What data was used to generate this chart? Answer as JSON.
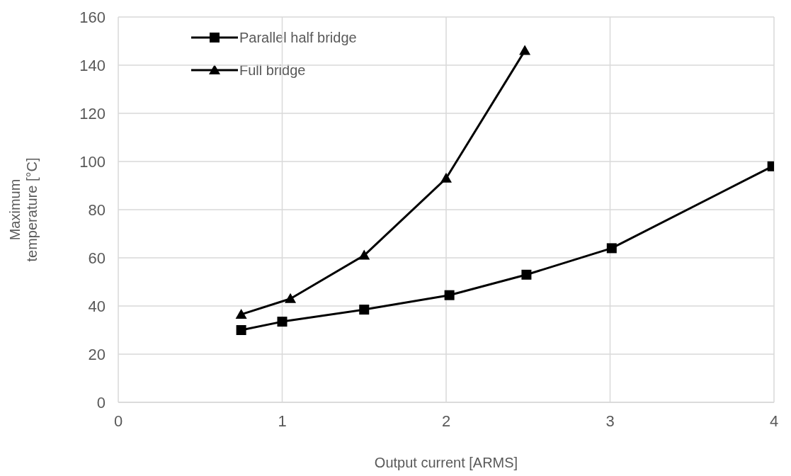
{
  "chart_data": {
    "type": "line",
    "xlabel": "Output current [ARMS]",
    "ylabel": "Maximum temperature [°C]",
    "xlim": [
      0,
      4
    ],
    "xticks": [
      0,
      1,
      2,
      3,
      4
    ],
    "ylim": [
      0,
      160
    ],
    "yticks": [
      0,
      20,
      40,
      60,
      80,
      100,
      120,
      140,
      160
    ],
    "grid": true,
    "legend": "top left",
    "line_style": "solid",
    "series": [
      {
        "name": "Parallel half bridge",
        "color": "#000000",
        "marker": "square",
        "x": [
          0.75,
          1.0,
          1.5,
          2.02,
          2.49,
          3.01,
          3.99
        ],
        "values": [
          30,
          33.5,
          38.5,
          44.5,
          53,
          64,
          98
        ]
      },
      {
        "name": "Full bridge",
        "color": "#000000",
        "marker": "triangle",
        "x": [
          0.75,
          1.05,
          1.5,
          2.0,
          2.48
        ],
        "values": [
          36.5,
          43,
          61,
          93,
          146
        ]
      }
    ]
  }
}
